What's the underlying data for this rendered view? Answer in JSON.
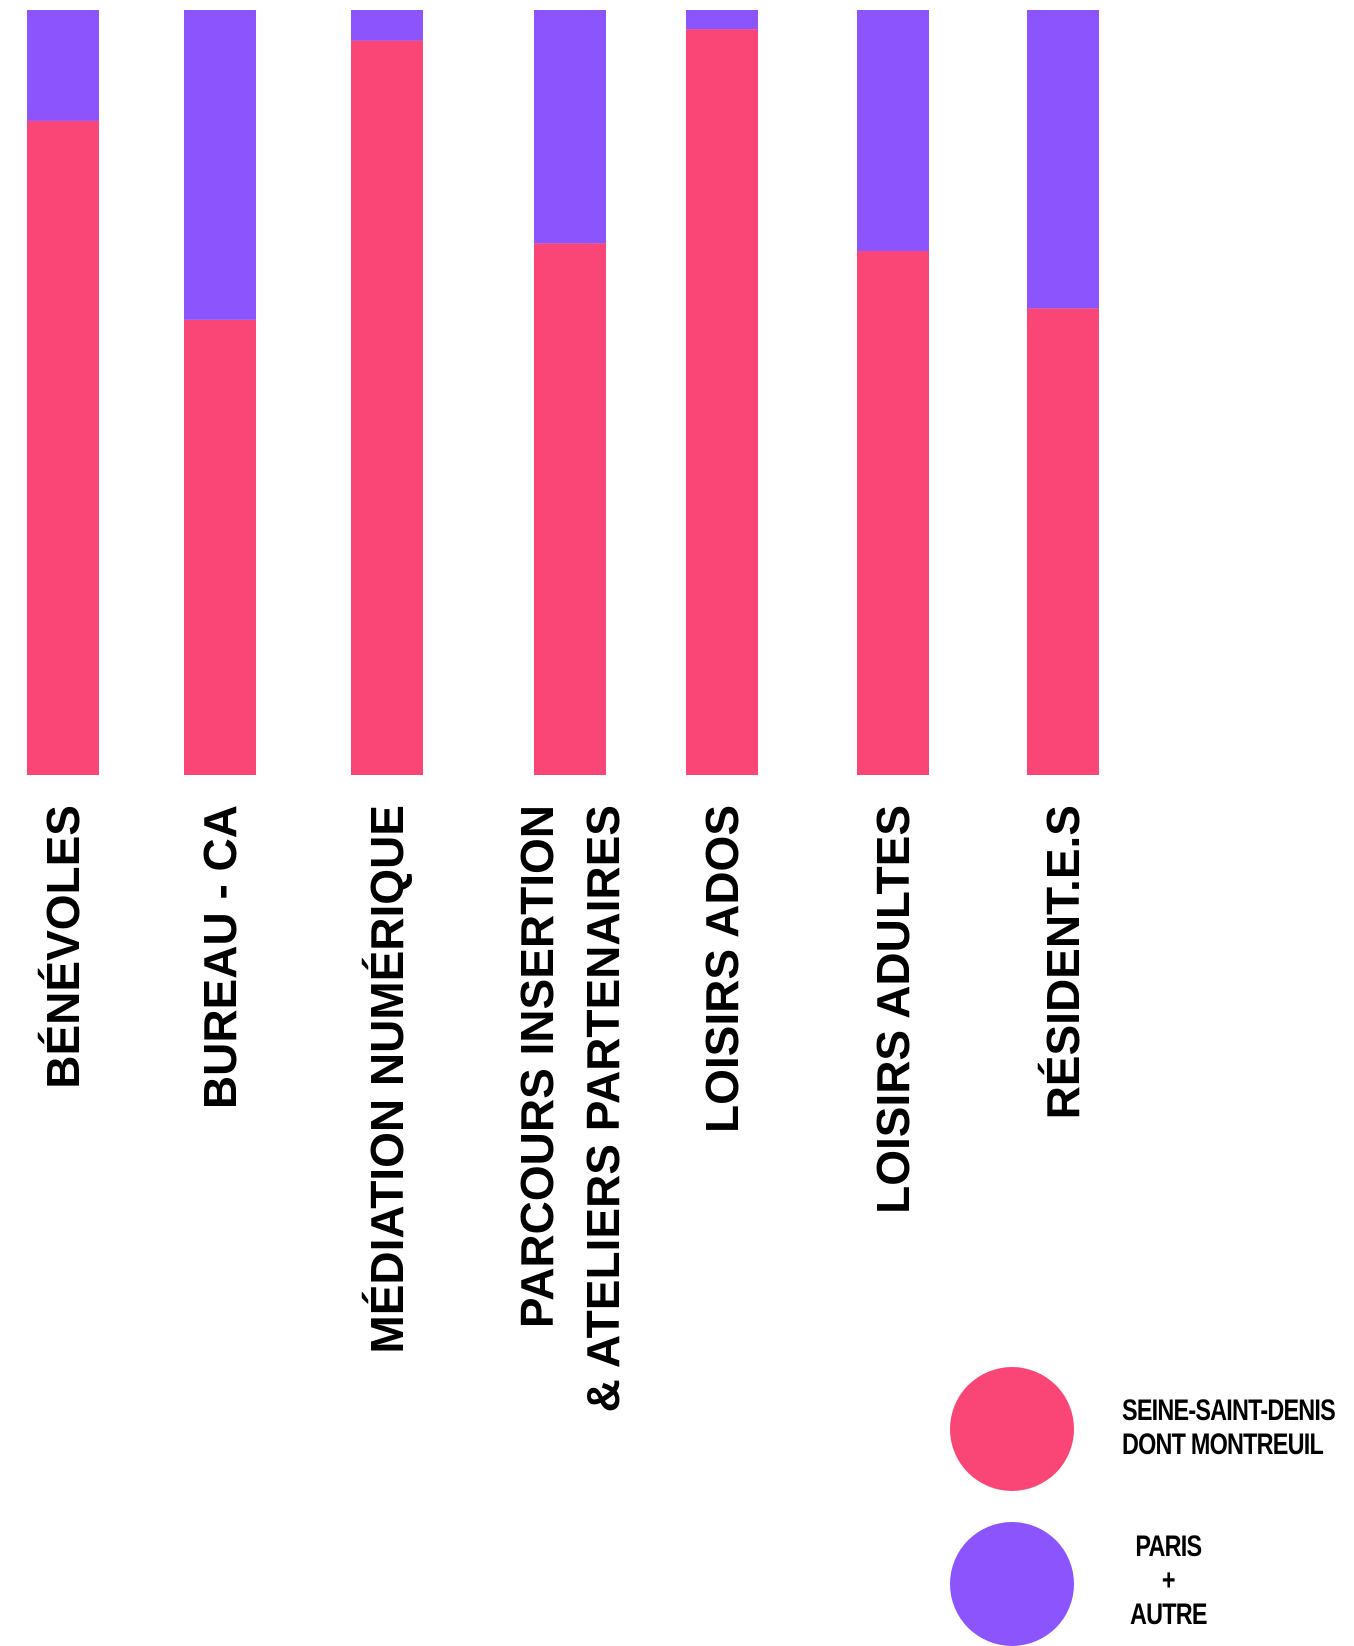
{
  "chart_data": {
    "type": "bar",
    "stacked": true,
    "normalized": true,
    "categories": [
      [
        "BÉNÉVOLES"
      ],
      [
        "BUREAU - CA"
      ],
      [
        "MÉDIATION NUMÉRIQUE"
      ],
      [
        "PARCOURS INSERTION",
        "& ATELIERS PARTENAIRES"
      ],
      [
        "LOISIRS ADOS"
      ],
      [
        "LOISIRS ADULTES"
      ],
      [
        "RÉSIDENT.E.S"
      ]
    ],
    "series": [
      {
        "name": "SEINE-SAINT-DENIS DONT MONTREUIL",
        "color": "#fa4577",
        "values": [
          0.855,
          0.595,
          0.96,
          0.695,
          0.975,
          0.685,
          0.61
        ]
      },
      {
        "name": "PARIS + AUTRE",
        "color": "#8b54fd",
        "values": [
          0.145,
          0.405,
          0.04,
          0.305,
          0.025,
          0.315,
          0.39
        ]
      }
    ],
    "ylim": [
      0,
      1
    ],
    "grid": false,
    "legend_position": "bottom-right"
  },
  "legend": {
    "seine": {
      "line1": "SEINE-SAINT-DENIS",
      "line2": "DONT MONTREUIL",
      "color": "#fa4577"
    },
    "paris": {
      "line1": "PARIS",
      "line2": "+",
      "line3": "AUTRE",
      "color": "#8b54fd"
    }
  }
}
